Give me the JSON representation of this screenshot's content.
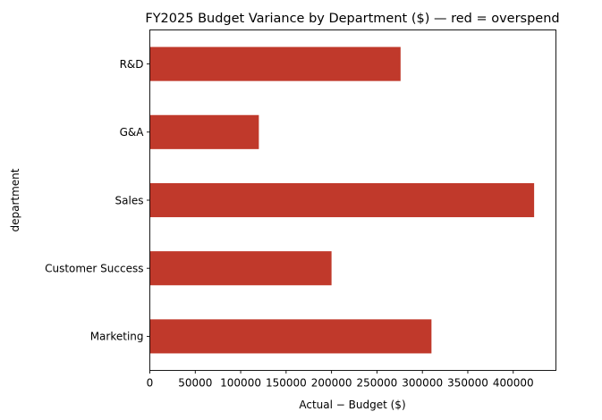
{
  "chart_data": {
    "type": "bar",
    "orientation": "horizontal",
    "title": "FY2025 Budget Variance by Department ($)  —  red = overspend",
    "xlabel": "Actual − Budget ($)",
    "ylabel": "department",
    "categories": [
      "Marketing",
      "Customer Success",
      "Sales",
      "G&A",
      "R&D"
    ],
    "values": [
      310000,
      200000,
      423000,
      120000,
      276000
    ],
    "xlim": [
      0,
      447000
    ],
    "xticks": [
      0,
      50000,
      100000,
      150000,
      200000,
      250000,
      300000,
      350000,
      400000
    ],
    "xtick_labels": [
      "0",
      "50000",
      "100000",
      "150000",
      "200000",
      "250000",
      "300000",
      "350000",
      "400000"
    ],
    "bar_color": "#c0392b",
    "grid": false,
    "legend": "none"
  }
}
